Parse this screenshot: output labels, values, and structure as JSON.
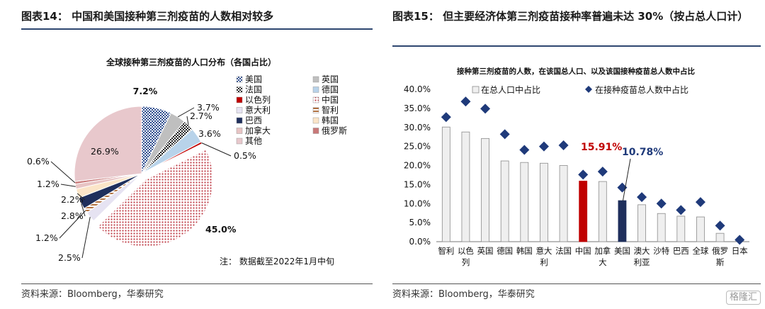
{
  "left": {
    "figure_title": "图表14：  中国和美国接种第三剂疫苗的人数相对较多",
    "source": "资料来源：Bloomberg，华泰研究",
    "note": "注：  数据截至2022年1月中旬"
  },
  "right": {
    "figure_title": "图表15：  但主要经济体第三剂疫苗接种率普遍未达  30%（按占总人口计）",
    "source": "资料来源：Bloomberg，华泰研究"
  },
  "watermark": "格隆汇",
  "chart_data": [
    {
      "type": "pie",
      "title": "全球接种第三剂疫苗的人口分布（各国占比）",
      "slices": [
        {
          "name": "美国",
          "value": 7.2,
          "label": "7.2%",
          "color": "#8ea6cc",
          "pattern": "checker-blue"
        },
        {
          "name": "英国",
          "value": 3.7,
          "label": "3.7%",
          "color": "#bfbfbf",
          "pattern": "solid-gray"
        },
        {
          "name": "法国",
          "value": 2.7,
          "label": "2.7%",
          "color": "#555555",
          "pattern": "checker-black"
        },
        {
          "name": "德国",
          "value": 3.6,
          "label": "3.6%",
          "color": "#b8d3ea",
          "pattern": "solid-lightblue"
        },
        {
          "name": "以色列",
          "value": 0.5,
          "label": "0.5%",
          "color": "#c00000",
          "pattern": "solid-red"
        },
        {
          "name": "中国",
          "value": 45.0,
          "label": "45.0%",
          "color": "#d08080",
          "pattern": "dots-red"
        },
        {
          "name": "意大利",
          "value": 2.5,
          "label": "2.5%",
          "color": "#e6e3f2",
          "pattern": "solid-lavender"
        },
        {
          "name": "智利",
          "value": 1.2,
          "label": "1.2%",
          "color": "#c9a98b",
          "pattern": "stripes-brown"
        },
        {
          "name": "巴西",
          "value": 2.8,
          "label": "2.8%",
          "color": "#1f2f5c",
          "pattern": "solid-navy"
        },
        {
          "name": "韩国",
          "value": 2.2,
          "label": "2.2%",
          "color": "#fbe5c8",
          "pattern": "solid-peach"
        },
        {
          "name": "加拿大",
          "value": 1.2,
          "label": "1.2%",
          "color": "#e8c4c4",
          "pattern": "solid-pink"
        },
        {
          "name": "俄罗斯",
          "value": 0.6,
          "label": "0.6%",
          "color": "#c97878",
          "pattern": "solid-rose"
        },
        {
          "name": "其他",
          "value": 26.9,
          "label": "26.9%",
          "color": "#e8c8cc",
          "pattern": "solid-pinkgray"
        }
      ],
      "legend": [
        "美国",
        "英国",
        "法国",
        "德国",
        "以色列",
        "中国",
        "意大利",
        "智利",
        "巴西",
        "韩国",
        "加拿大",
        "俄罗斯",
        "其他"
      ],
      "legend_position": "right"
    },
    {
      "type": "bar",
      "title": "接种第三剂疫苗的人数，在该国总人口、以及该国接种疫苗总人数中占比",
      "categories": [
        "智利",
        "以色列",
        "英国",
        "德国",
        "韩国",
        "意大利",
        "法国",
        "中国",
        "加拿大",
        "美国",
        "澳大利亚",
        "沙特",
        "巴西",
        "全球",
        "俄罗斯",
        "日本"
      ],
      "category_labels": [
        [
          "智利"
        ],
        [
          "以色",
          "列"
        ],
        [
          "英国"
        ],
        [
          "德国"
        ],
        [
          "韩国"
        ],
        [
          "意大",
          "利"
        ],
        [
          "法国"
        ],
        [
          "中国"
        ],
        [
          "加拿",
          "大"
        ],
        [
          "美国"
        ],
        [
          "澳大",
          "利亚"
        ],
        [
          "沙特"
        ],
        [
          "巴西"
        ],
        [
          "全球"
        ],
        [
          "俄罗",
          "斯"
        ],
        [
          "日本"
        ]
      ],
      "series": [
        {
          "name": "在总人口中占比",
          "kind": "bar",
          "values": [
            30.1,
            28.8,
            27.1,
            21.2,
            20.8,
            20.6,
            20.0,
            15.91,
            15.8,
            10.78,
            9.7,
            7.4,
            6.7,
            6.5,
            2.2,
            0.4
          ]
        },
        {
          "name": "在接种疫苗总人数中占比",
          "kind": "marker",
          "values": [
            32.7,
            36.8,
            34.9,
            28.2,
            24.1,
            25.0,
            25.3,
            17.6,
            18.4,
            14.2,
            11.7,
            10.0,
            8.3,
            10.4,
            4.2,
            0.5
          ]
        }
      ],
      "highlights": [
        {
          "category": "中国",
          "label": "15.91%",
          "color": "#c00000"
        },
        {
          "category": "美国",
          "label": "10.78%",
          "color": "#1f3a7a"
        }
      ],
      "ylim": [
        0,
        40
      ],
      "yticks": [
        "0.0%",
        "5.0%",
        "10.0%",
        "15.0%",
        "20.0%",
        "25.0%",
        "30.0%",
        "35.0%",
        "40.0%"
      ],
      "colors": {
        "bar": "#efefef",
        "bar_border": "#8c8c8c",
        "marker": "#1f3a7a",
        "china": "#c00000",
        "usa": "#1f2f5c"
      },
      "legend_position": "top"
    }
  ]
}
